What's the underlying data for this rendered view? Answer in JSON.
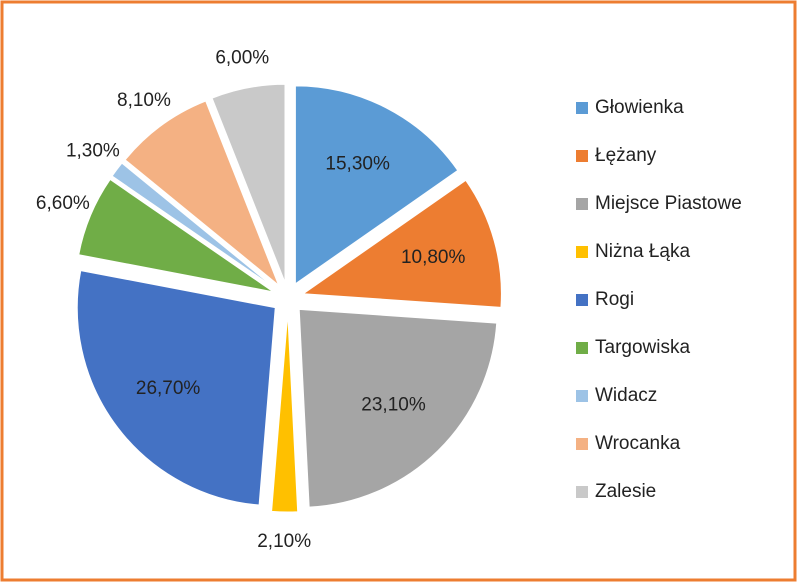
{
  "chart_data": {
    "type": "pie",
    "categories": [
      "Głowienka",
      "Łężany",
      "Miejsce Piastowe",
      "Niżna Łąka",
      "Rogi",
      "Targowiska",
      "Widacz",
      "Wrocanka",
      "Zalesie"
    ],
    "values": [
      15.3,
      10.8,
      23.1,
      2.1,
      26.7,
      6.6,
      1.3,
      8.1,
      6.0
    ],
    "value_labels": [
      "15,30%",
      "10,80%",
      "23,10%",
      "2,10%",
      "26,70%",
      "6,60%",
      "1,30%",
      "8,10%",
      "6,00%"
    ],
    "colors": [
      "#5B9BD5",
      "#ED7D31",
      "#A5A5A5",
      "#FFC000",
      "#4472C4",
      "#70AD47",
      "#9DC3E6",
      "#F4B183",
      "#C9C9C9"
    ],
    "legend": "right",
    "exploded": true
  }
}
